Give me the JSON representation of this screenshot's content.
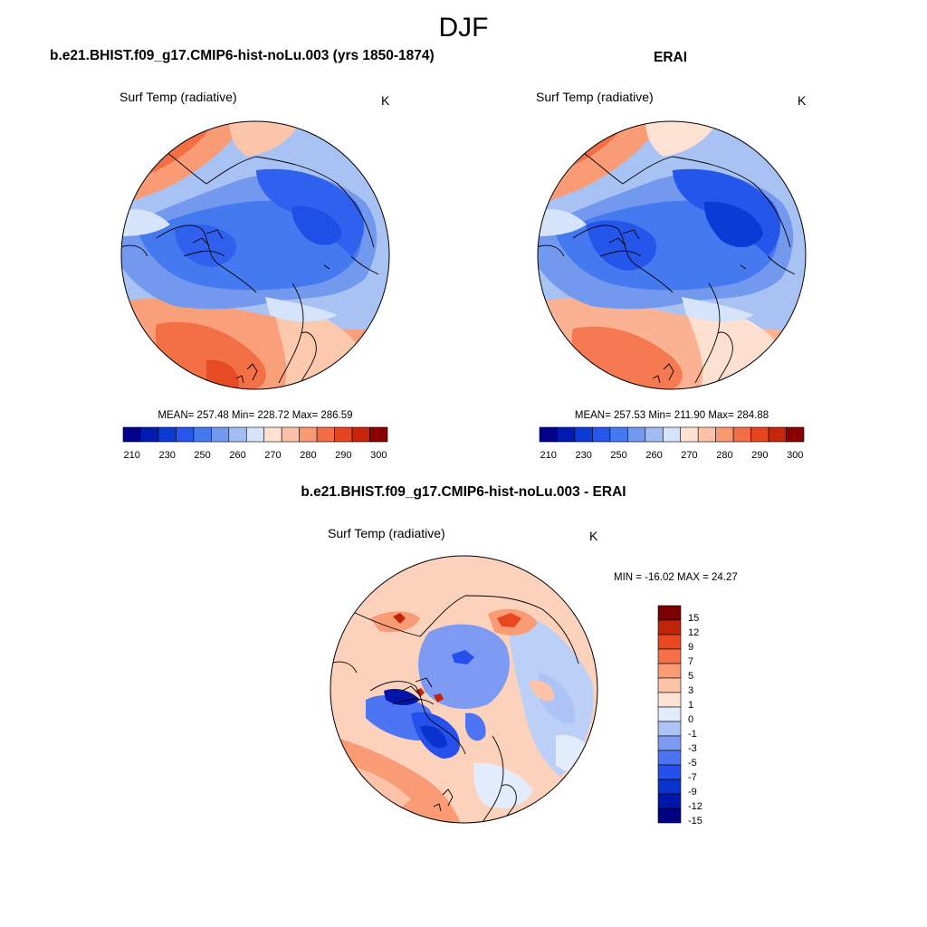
{
  "season_title": "DJF",
  "panels": {
    "left": {
      "title": "b.e21.BHIST.f09_g17.CMIP6-hist-noLu.003 (yrs 1850-1874)",
      "variable": "Surf Temp (radiative)",
      "units": "K",
      "stats": "MEAN= 257.48  Min= 228.72  Max= 286.59"
    },
    "right": {
      "title": "ERAI",
      "variable": "Surf Temp (radiative)",
      "units": "K",
      "stats": "MEAN= 257.53  Min= 211.90  Max= 284.88"
    },
    "diff": {
      "title": "b.e21.BHIST.f09_g17.CMIP6-hist-noLu.003 - ERAI",
      "variable": "Surf Temp (radiative)",
      "units": "K",
      "stats": "MIN = -16.02 MAX =  24.27"
    }
  },
  "colorbars": {
    "abs": {
      "colors": [
        "#00008b",
        "#001cb0",
        "#0b3bd6",
        "#2456ec",
        "#4579f0",
        "#7399ef",
        "#a3bcf3",
        "#d6e4fb",
        "#fde2d4",
        "#fcc1a6",
        "#f99972",
        "#f36e45",
        "#e74521",
        "#c8260c",
        "#8b0000"
      ],
      "labels": [
        "210",
        "230",
        "250",
        "260",
        "270",
        "280",
        "290",
        "300"
      ]
    },
    "diff": {
      "colors": [
        "#000080",
        "#0016a8",
        "#0a32cc",
        "#2550ee",
        "#4d74f2",
        "#7d9bf2",
        "#aec3f5",
        "#e3ecfc",
        "#fde3d5",
        "#fcc3a8",
        "#f99b74",
        "#f57048",
        "#e8471f",
        "#c2240a",
        "#7d0000"
      ],
      "labels": [
        "15",
        "12",
        "9",
        "7",
        "5",
        "3",
        "1",
        "0",
        "-1",
        "-3",
        "-5",
        "-7",
        "-9",
        "-12",
        "-15"
      ]
    }
  },
  "chart_data": [
    {
      "type": "heatmap",
      "title": "b.e21.BHIST.f09_g17.CMIP6-hist-noLu.003 (yrs 1850-1874)",
      "variable": "Surf Temp (radiative)",
      "units": "K",
      "projection": "north polar stereographic",
      "mean": 257.48,
      "min": 228.72,
      "max": 286.59,
      "contour_levels": [
        210,
        215,
        220,
        230,
        240,
        250,
        255,
        260,
        265,
        270,
        275,
        280,
        285,
        290,
        295,
        300
      ]
    },
    {
      "type": "heatmap",
      "title": "ERAI",
      "variable": "Surf Temp (radiative)",
      "units": "K",
      "projection": "north polar stereographic",
      "mean": 257.53,
      "min": 211.9,
      "max": 284.88,
      "contour_levels": [
        210,
        215,
        220,
        230,
        240,
        250,
        255,
        260,
        265,
        270,
        275,
        280,
        285,
        290,
        295,
        300
      ]
    },
    {
      "type": "heatmap",
      "title": "b.e21.BHIST.f09_g17.CMIP6-hist-noLu.003 - ERAI",
      "variable": "Surf Temp (radiative)",
      "units": "K",
      "projection": "north polar stereographic",
      "min": -16.02,
      "max": 24.27,
      "contour_levels": [
        -15,
        -12,
        -9,
        -7,
        -5,
        -3,
        -1,
        0,
        1,
        3,
        5,
        7,
        9,
        12,
        15
      ]
    }
  ]
}
